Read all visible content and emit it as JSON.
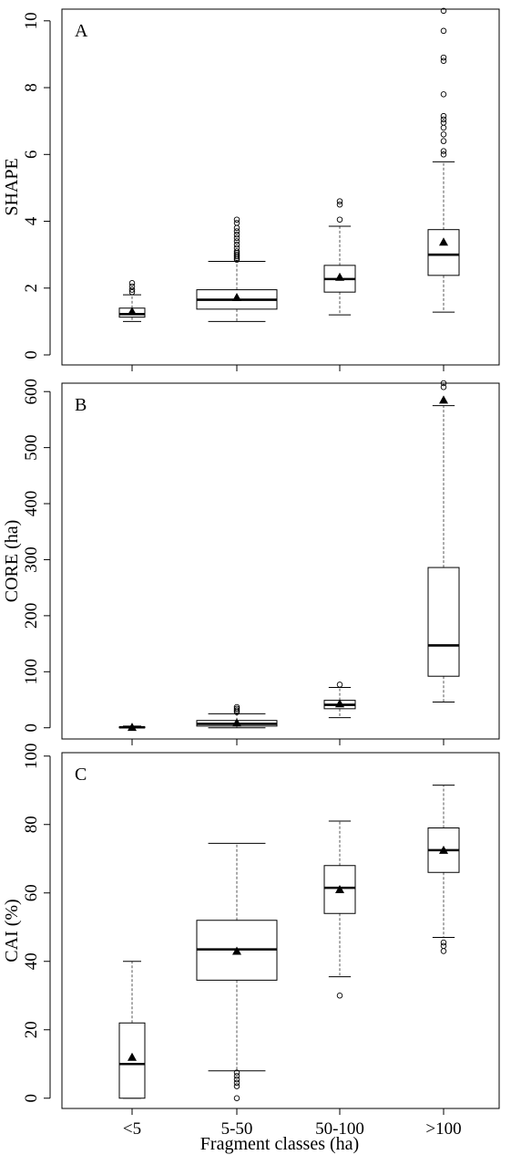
{
  "chart_data": [
    {
      "type": "box",
      "panel_label": "A",
      "ylabel": "SHAPE",
      "ylim": [
        -0.3,
        10.35
      ],
      "yticks": [
        0,
        2,
        4,
        6,
        8,
        10
      ],
      "categories": [
        "<5",
        "5-50",
        "50-100",
        ">100"
      ],
      "boxes": [
        {
          "category": "<5",
          "whisker_low": 1.0,
          "q1": 1.13,
          "median": 1.22,
          "q3": 1.4,
          "whisker_high": 1.8,
          "mean": 1.3,
          "outliers": [
            1.88,
            1.95,
            2.05,
            2.15
          ]
        },
        {
          "category": "5-50",
          "whisker_low": 1.0,
          "q1": 1.37,
          "median": 1.65,
          "q3": 1.95,
          "whisker_high": 2.8,
          "mean": 1.72,
          "outliers": [
            2.85,
            2.9,
            2.95,
            3.0,
            3.05,
            3.1,
            3.2,
            3.3,
            3.4,
            3.5,
            3.6,
            3.7,
            3.8,
            3.95,
            4.05
          ]
        },
        {
          "category": "50-100",
          "whisker_low": 1.2,
          "q1": 1.88,
          "median": 2.27,
          "q3": 2.68,
          "whisker_high": 3.85,
          "mean": 2.33,
          "outliers": [
            4.05,
            4.5,
            4.6
          ]
        },
        {
          "category": ">100",
          "whisker_low": 1.28,
          "q1": 2.38,
          "median": 3.0,
          "q3": 3.75,
          "whisker_high": 5.78,
          "mean": 3.38,
          "outliers": [
            6.0,
            6.1,
            6.4,
            6.6,
            6.8,
            6.95,
            7.05,
            7.15,
            7.8,
            8.8,
            8.9,
            9.7,
            10.3
          ]
        }
      ]
    },
    {
      "type": "box",
      "panel_label": "B",
      "ylabel": "CORE (ha)",
      "ylim": [
        -20,
        615
      ],
      "yticks": [
        0,
        100,
        200,
        300,
        400,
        500,
        600
      ],
      "categories": [
        "<5",
        "5-50",
        "50-100",
        ">100"
      ],
      "boxes": [
        {
          "category": "<5",
          "whisker_low": 0,
          "q1": 0.3,
          "median": 0.8,
          "q3": 1.6,
          "whisker_high": 3,
          "mean": 1,
          "outliers": []
        },
        {
          "category": "5-50",
          "whisker_low": 0,
          "q1": 3,
          "median": 7,
          "q3": 13,
          "whisker_high": 25,
          "mean": 9,
          "outliers": [
            28,
            31,
            34,
            37
          ]
        },
        {
          "category": "50-100",
          "whisker_low": 18,
          "q1": 34,
          "median": 41,
          "q3": 49,
          "whisker_high": 72,
          "mean": 43,
          "outliers": [
            77
          ]
        },
        {
          "category": ">100",
          "whisker_low": 46,
          "q1": 92,
          "median": 147,
          "q3": 286,
          "whisker_high": 575,
          "mean": 585,
          "outliers": [
            608,
            615
          ]
        }
      ]
    },
    {
      "type": "box",
      "panel_label": "C",
      "ylabel": "CAI (%)",
      "ylim": [
        -3,
        101
      ],
      "yticks": [
        0,
        20,
        40,
        60,
        80,
        100
      ],
      "xlabel": "Fragment classes (ha)",
      "categories": [
        "<5",
        "5-50",
        "50-100",
        ">100"
      ],
      "boxes": [
        {
          "category": "<5",
          "whisker_low": 0,
          "q1": 0,
          "median": 10,
          "q3": 22,
          "whisker_high": 40,
          "mean": 12,
          "outliers": []
        },
        {
          "category": "5-50",
          "whisker_low": 8,
          "q1": 34.5,
          "median": 43.5,
          "q3": 52,
          "whisker_high": 74.5,
          "mean": 43,
          "outliers": [
            0,
            3.5,
            4.5,
            5.5,
            6.5,
            7.5
          ]
        },
        {
          "category": "50-100",
          "whisker_low": 35.5,
          "q1": 54,
          "median": 61.5,
          "q3": 68,
          "whisker_high": 81,
          "mean": 61,
          "outliers": [
            30
          ]
        },
        {
          "category": ">100",
          "whisker_low": 47,
          "q1": 66,
          "median": 72.5,
          "q3": 79,
          "whisker_high": 91.5,
          "mean": 72.5,
          "outliers": [
            43,
            44.5,
            45.5
          ]
        }
      ]
    }
  ]
}
